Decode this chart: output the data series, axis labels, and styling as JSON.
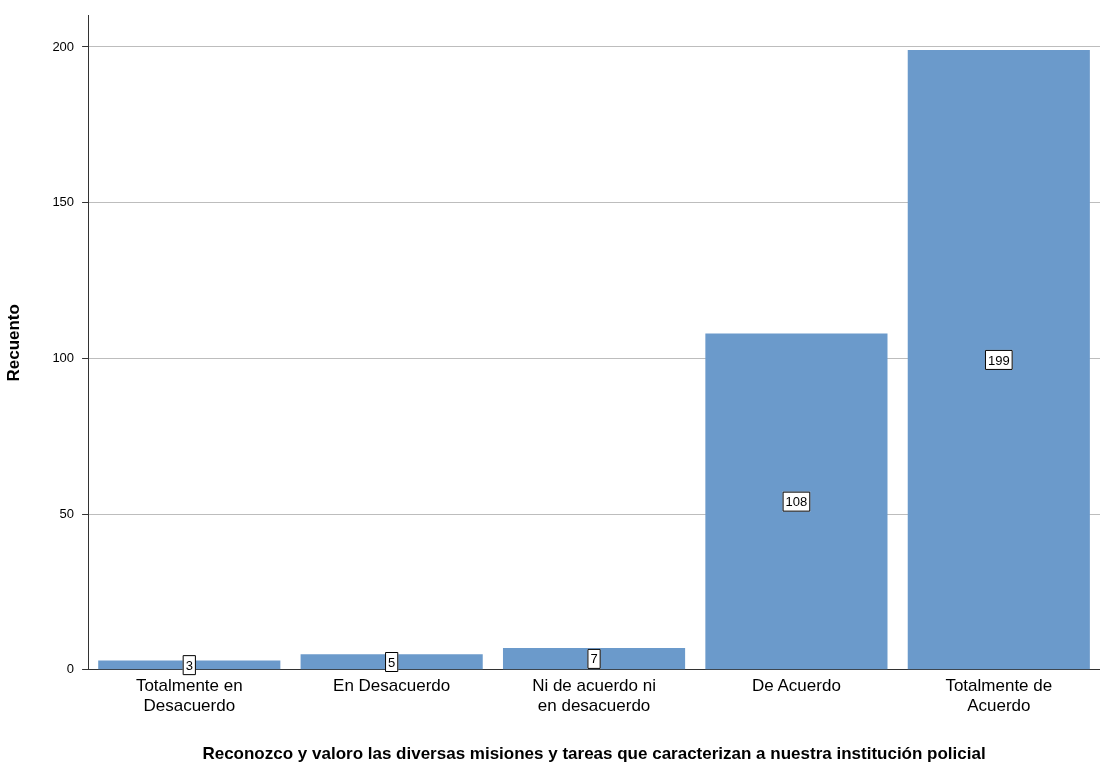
{
  "chart_data": {
    "type": "bar",
    "xlabel": "Reconozco y valoro las diversas misiones y tareas que caracterizan a nuestra institución policial",
    "ylabel": "Recuento",
    "categories": [
      "Totalmente en Desacuerdo",
      "En Desacuerdo",
      "Ni de acuerdo ni en desacuerdo",
      "De Acuerdo",
      "Totalmente de Acuerdo"
    ],
    "values": [
      3,
      5,
      7,
      108,
      199
    ],
    "color": "#6b9acb",
    "ylim": [
      0,
      210
    ],
    "yticks": [
      0,
      50,
      100,
      150,
      200
    ],
    "grid": "y",
    "data_labels": true,
    "legend": false
  }
}
